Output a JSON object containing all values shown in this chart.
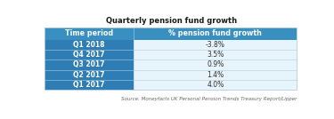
{
  "title": "Quarterly pension fund growth",
  "col1_header": "Time period",
  "col2_header": "% pension fund growth",
  "rows": [
    [
      "Q1 2018",
      "-3.8%"
    ],
    [
      "Q4 2017",
      "3.5%"
    ],
    [
      "Q3 2017",
      "0.9%"
    ],
    [
      "Q2 2017",
      "1.4%"
    ],
    [
      "Q1 2017",
      "4.0%"
    ]
  ],
  "header_bg": "#3a8fc1",
  "row_bg_left": "#2e7db5",
  "row_bg_right": "#e8f4fb",
  "row_line_color": "#b0cfe0",
  "header_text_color": "#ffffff",
  "left_text_color": "#ffffff",
  "right_text_color": "#2e2e2e",
  "title_color": "#1a1a1a",
  "source_text": "Source: Moneyfacts UK Personal Pension Trends Treasury Report/Lipper",
  "source_color": "#666666",
  "bg_color": "#ffffff",
  "title_fontsize": 6.0,
  "header_fontsize": 5.8,
  "cell_fontsize": 5.5,
  "source_fontsize": 4.0,
  "col_split": 0.355
}
